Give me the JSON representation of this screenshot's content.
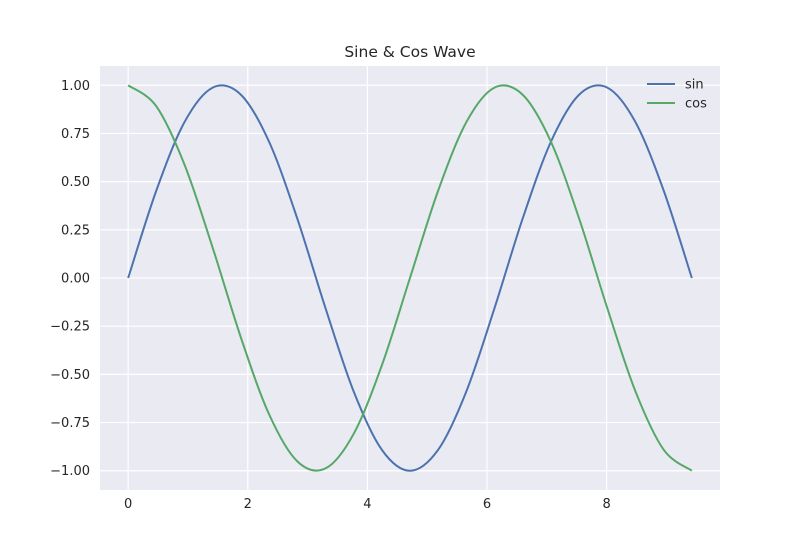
{
  "chart_data": {
    "type": "line",
    "title": "Sine & Cos Wave",
    "xlabel": "",
    "ylabel": "",
    "xlim": [
      -0.471,
      9.896
    ],
    "ylim": [
      -1.1,
      1.1
    ],
    "x_ticks": [
      0,
      2,
      4,
      6,
      8
    ],
    "x_tick_labels": [
      "0",
      "2",
      "4",
      "6",
      "8"
    ],
    "y_ticks": [
      -1.0,
      -0.75,
      -0.5,
      -0.25,
      0.0,
      0.25,
      0.5,
      0.75,
      1.0
    ],
    "y_tick_labels": [
      "−1.00",
      "−0.75",
      "−0.50",
      "−0.25",
      "0.00",
      "0.25",
      "0.50",
      "0.75",
      "1.00"
    ],
    "grid": true,
    "legend_position": "top-right",
    "background": "#eaeaf2",
    "series": [
      {
        "name": "sin",
        "color": "#4c72b0",
        "x": [
          0,
          0.471,
          0.942,
          1.414,
          1.885,
          2.356,
          2.827,
          3.299,
          3.77,
          4.241,
          4.712,
          5.184,
          5.655,
          6.126,
          6.597,
          7.069,
          7.54,
          8.011,
          8.482,
          8.954,
          9.425
        ],
        "y": [
          0,
          0.454,
          0.809,
          0.988,
          0.951,
          0.707,
          0.309,
          -0.156,
          -0.588,
          -0.891,
          -1.0,
          -0.891,
          -0.588,
          -0.156,
          0.309,
          0.707,
          0.951,
          0.988,
          0.809,
          0.454,
          0
        ]
      },
      {
        "name": "cos",
        "color": "#55a868",
        "x": [
          0,
          0.471,
          0.942,
          1.414,
          1.885,
          2.356,
          2.827,
          3.299,
          3.77,
          4.241,
          4.712,
          5.184,
          5.655,
          6.126,
          6.597,
          7.069,
          7.54,
          8.011,
          8.482,
          8.954,
          9.425
        ],
        "y": [
          1.0,
          0.891,
          0.588,
          0.156,
          -0.309,
          -0.707,
          -0.951,
          -0.988,
          -0.809,
          -0.454,
          0,
          0.454,
          0.809,
          0.988,
          0.951,
          0.707,
          0.309,
          -0.156,
          -0.588,
          -0.891,
          -1.0
        ]
      }
    ]
  }
}
